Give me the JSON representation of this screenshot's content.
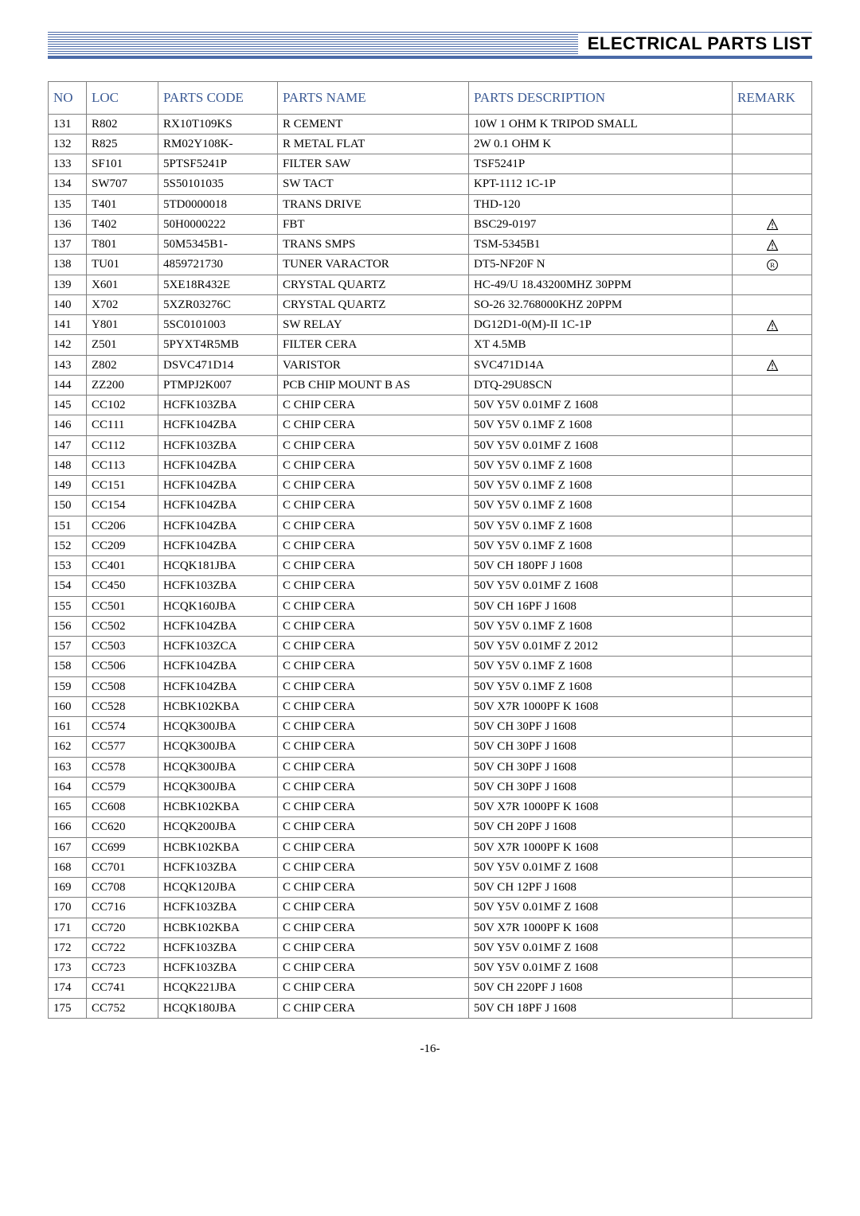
{
  "header": {
    "title": "ELECTRICAL PARTS LIST"
  },
  "footer": {
    "page": "-16-"
  },
  "colors": {
    "header_rule": "#4a6aa8",
    "th_text": "#3b5a94",
    "border": "#808080"
  },
  "table": {
    "columns": [
      {
        "key": "no",
        "label": "NO"
      },
      {
        "key": "loc",
        "label": "LOC"
      },
      {
        "key": "code",
        "label": "PARTS CODE"
      },
      {
        "key": "name",
        "label": "PARTS NAME"
      },
      {
        "key": "desc",
        "label": "PARTS DESCRIPTION"
      },
      {
        "key": "remark",
        "label": "REMARK"
      }
    ],
    "rows": [
      {
        "no": "131",
        "loc": "R802",
        "code": "RX10T109KS",
        "name": "R CEMENT",
        "desc": "10W 1 OHM K TRIPOD SMALL",
        "remark": ""
      },
      {
        "no": "132",
        "loc": "R825",
        "code": "RM02Y108K-",
        "name": "R METAL FLAT",
        "desc": "2W 0.1 OHM K",
        "remark": ""
      },
      {
        "no": "133",
        "loc": "SF101",
        "code": "5PTSF5241P",
        "name": "FILTER SAW",
        "desc": "TSF5241P",
        "remark": ""
      },
      {
        "no": "134",
        "loc": "SW707",
        "code": "5S50101035",
        "name": "SW TACT",
        "desc": "KPT-1112 1C-1P",
        "remark": ""
      },
      {
        "no": "135",
        "loc": "T401",
        "code": "5TD0000018",
        "name": "TRANS DRIVE",
        "desc": "THD-120",
        "remark": ""
      },
      {
        "no": "136",
        "loc": "T402",
        "code": "50H0000222",
        "name": "FBT",
        "desc": "BSC29-0197",
        "remark": "warn"
      },
      {
        "no": "137",
        "loc": "T801",
        "code": "50M5345B1-",
        "name": "TRANS SMPS",
        "desc": "TSM-5345B1",
        "remark": "warn"
      },
      {
        "no": "138",
        "loc": "TU01",
        "code": "4859721730",
        "name": "TUNER VARACTOR",
        "desc": "DT5-NF20F N",
        "remark": "reg"
      },
      {
        "no": "139",
        "loc": "X601",
        "code": "5XE18R432E",
        "name": "CRYSTAL QUARTZ",
        "desc": "HC-49/U 18.43200MHZ 30PPM",
        "remark": ""
      },
      {
        "no": "140",
        "loc": "X702",
        "code": "5XZR03276C",
        "name": "CRYSTAL QUARTZ",
        "desc": "SO-26 32.768000KHZ 20PPM",
        "remark": ""
      },
      {
        "no": "141",
        "loc": "Y801",
        "code": "5SC0101003",
        "name": "SW RELAY",
        "desc": "DG12D1-0(M)-II 1C-1P",
        "remark": "warn"
      },
      {
        "no": "142",
        "loc": "Z501",
        "code": "5PYXT4R5MB",
        "name": "FILTER CERA",
        "desc": "XT 4.5MB",
        "remark": ""
      },
      {
        "no": "143",
        "loc": "Z802",
        "code": "DSVC471D14",
        "name": "VARISTOR",
        "desc": "SVC471D14A",
        "remark": "warn"
      },
      {
        "no": "144",
        "loc": "ZZ200",
        "code": "PTMPJ2K007",
        "name": "PCB CHIP MOUNT B AS",
        "desc": "DTQ-29U8SCN",
        "remark": ""
      },
      {
        "no": "145",
        "loc": "CC102",
        "code": "HCFK103ZBA",
        "name": "C CHIP CERA",
        "desc": "50V Y5V 0.01MF Z 1608",
        "remark": ""
      },
      {
        "no": "146",
        "loc": "CC111",
        "code": "HCFK104ZBA",
        "name": "C CHIP CERA",
        "desc": "50V Y5V 0.1MF Z 1608",
        "remark": ""
      },
      {
        "no": "147",
        "loc": "CC112",
        "code": "HCFK103ZBA",
        "name": "C CHIP CERA",
        "desc": "50V Y5V 0.01MF Z 1608",
        "remark": ""
      },
      {
        "no": "148",
        "loc": "CC113",
        "code": "HCFK104ZBA",
        "name": "C CHIP CERA",
        "desc": "50V Y5V 0.1MF Z 1608",
        "remark": ""
      },
      {
        "no": "149",
        "loc": "CC151",
        "code": "HCFK104ZBA",
        "name": "C CHIP CERA",
        "desc": "50V Y5V 0.1MF Z 1608",
        "remark": ""
      },
      {
        "no": "150",
        "loc": "CC154",
        "code": "HCFK104ZBA",
        "name": "C CHIP CERA",
        "desc": "50V Y5V 0.1MF Z 1608",
        "remark": ""
      },
      {
        "no": "151",
        "loc": "CC206",
        "code": "HCFK104ZBA",
        "name": "C CHIP CERA",
        "desc": "50V Y5V 0.1MF Z 1608",
        "remark": ""
      },
      {
        "no": "152",
        "loc": "CC209",
        "code": "HCFK104ZBA",
        "name": "C CHIP CERA",
        "desc": "50V Y5V 0.1MF Z 1608",
        "remark": ""
      },
      {
        "no": "153",
        "loc": "CC401",
        "code": "HCQK181JBA",
        "name": "C CHIP CERA",
        "desc": "50V CH 180PF J 1608",
        "remark": ""
      },
      {
        "no": "154",
        "loc": "CC450",
        "code": "HCFK103ZBA",
        "name": "C CHIP CERA",
        "desc": "50V Y5V 0.01MF Z 1608",
        "remark": ""
      },
      {
        "no": "155",
        "loc": "CC501",
        "code": "HCQK160JBA",
        "name": "C CHIP CERA",
        "desc": "50V CH 16PF J 1608",
        "remark": ""
      },
      {
        "no": "156",
        "loc": "CC502",
        "code": "HCFK104ZBA",
        "name": "C CHIP CERA",
        "desc": "50V Y5V 0.1MF Z 1608",
        "remark": ""
      },
      {
        "no": "157",
        "loc": "CC503",
        "code": "HCFK103ZCA",
        "name": "C CHIP CERA",
        "desc": "50V Y5V 0.01MF Z 2012",
        "remark": ""
      },
      {
        "no": "158",
        "loc": "CC506",
        "code": "HCFK104ZBA",
        "name": "C CHIP CERA",
        "desc": "50V Y5V 0.1MF Z 1608",
        "remark": ""
      },
      {
        "no": "159",
        "loc": "CC508",
        "code": "HCFK104ZBA",
        "name": "C CHIP CERA",
        "desc": "50V Y5V 0.1MF Z 1608",
        "remark": ""
      },
      {
        "no": "160",
        "loc": "CC528",
        "code": "HCBK102KBA",
        "name": "C CHIP CERA",
        "desc": "50V X7R 1000PF K 1608",
        "remark": ""
      },
      {
        "no": "161",
        "loc": "CC574",
        "code": "HCQK300JBA",
        "name": "C CHIP CERA",
        "desc": "50V CH 30PF J 1608",
        "remark": ""
      },
      {
        "no": "162",
        "loc": "CC577",
        "code": "HCQK300JBA",
        "name": "C CHIP CERA",
        "desc": "50V CH 30PF J 1608",
        "remark": ""
      },
      {
        "no": "163",
        "loc": "CC578",
        "code": "HCQK300JBA",
        "name": "C CHIP CERA",
        "desc": "50V CH 30PF J 1608",
        "remark": ""
      },
      {
        "no": "164",
        "loc": "CC579",
        "code": "HCQK300JBA",
        "name": "C CHIP CERA",
        "desc": "50V CH 30PF J 1608",
        "remark": ""
      },
      {
        "no": "165",
        "loc": "CC608",
        "code": "HCBK102KBA",
        "name": "C CHIP CERA",
        "desc": "50V X7R 1000PF K 1608",
        "remark": ""
      },
      {
        "no": "166",
        "loc": "CC620",
        "code": "HCQK200JBA",
        "name": "C CHIP CERA",
        "desc": "50V CH 20PF J 1608",
        "remark": ""
      },
      {
        "no": "167",
        "loc": "CC699",
        "code": "HCBK102KBA",
        "name": "C CHIP CERA",
        "desc": "50V X7R 1000PF K 1608",
        "remark": ""
      },
      {
        "no": "168",
        "loc": "CC701",
        "code": "HCFK103ZBA",
        "name": "C CHIP CERA",
        "desc": "50V Y5V 0.01MF Z 1608",
        "remark": ""
      },
      {
        "no": "169",
        "loc": "CC708",
        "code": "HCQK120JBA",
        "name": "C CHIP CERA",
        "desc": "50V CH 12PF J 1608",
        "remark": ""
      },
      {
        "no": "170",
        "loc": "CC716",
        "code": "HCFK103ZBA",
        "name": "C CHIP CERA",
        "desc": "50V Y5V 0.01MF Z 1608",
        "remark": ""
      },
      {
        "no": "171",
        "loc": "CC720",
        "code": "HCBK102KBA",
        "name": "C CHIP CERA",
        "desc": "50V X7R 1000PF K 1608",
        "remark": ""
      },
      {
        "no": "172",
        "loc": "CC722",
        "code": "HCFK103ZBA",
        "name": "C CHIP CERA",
        "desc": "50V Y5V 0.01MF Z 1608",
        "remark": ""
      },
      {
        "no": "173",
        "loc": "CC723",
        "code": "HCFK103ZBA",
        "name": "C CHIP CERA",
        "desc": "50V Y5V 0.01MF Z 1608",
        "remark": ""
      },
      {
        "no": "174",
        "loc": "CC741",
        "code": "HCQK221JBA",
        "name": "C CHIP CERA",
        "desc": "50V CH 220PF J 1608",
        "remark": ""
      },
      {
        "no": "175",
        "loc": "CC752",
        "code": "HCQK180JBA",
        "name": "C CHIP CERA",
        "desc": "50V CH 18PF J 1608",
        "remark": ""
      }
    ]
  }
}
